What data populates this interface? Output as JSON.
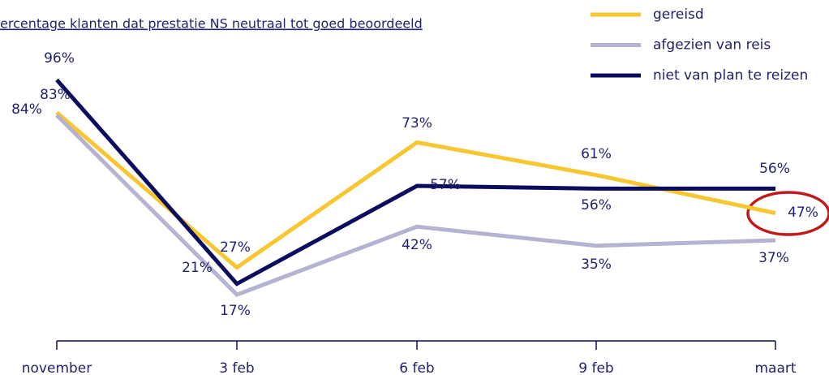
{
  "chart_data": {
    "type": "line",
    "title": "ercentage klanten dat prestatie NS neutraal tot goed beoordeeld",
    "categories": [
      "november",
      "3 feb",
      "6 feb",
      "9 feb",
      "maart"
    ],
    "series": [
      {
        "name": "gereisd",
        "color": "#f7c631",
        "values": [
          84,
          27,
          73,
          61,
          47
        ],
        "value_labels": [
          "84%",
          "27%",
          "73%",
          "61%",
          "47%"
        ]
      },
      {
        "name": "afgezien van reis",
        "color": "#b4b4d2",
        "values": [
          83,
          17,
          42,
          35,
          37
        ],
        "value_labels": [
          "83%",
          "17%",
          "42%",
          "35%",
          "37%"
        ]
      },
      {
        "name": "niet van plan te reizen",
        "color": "#0c0c5e",
        "values": [
          96,
          21,
          57,
          56,
          56
        ],
        "value_labels": [
          "96%",
          "21%",
          "57%",
          "56%",
          "56%"
        ]
      }
    ]
  }
}
